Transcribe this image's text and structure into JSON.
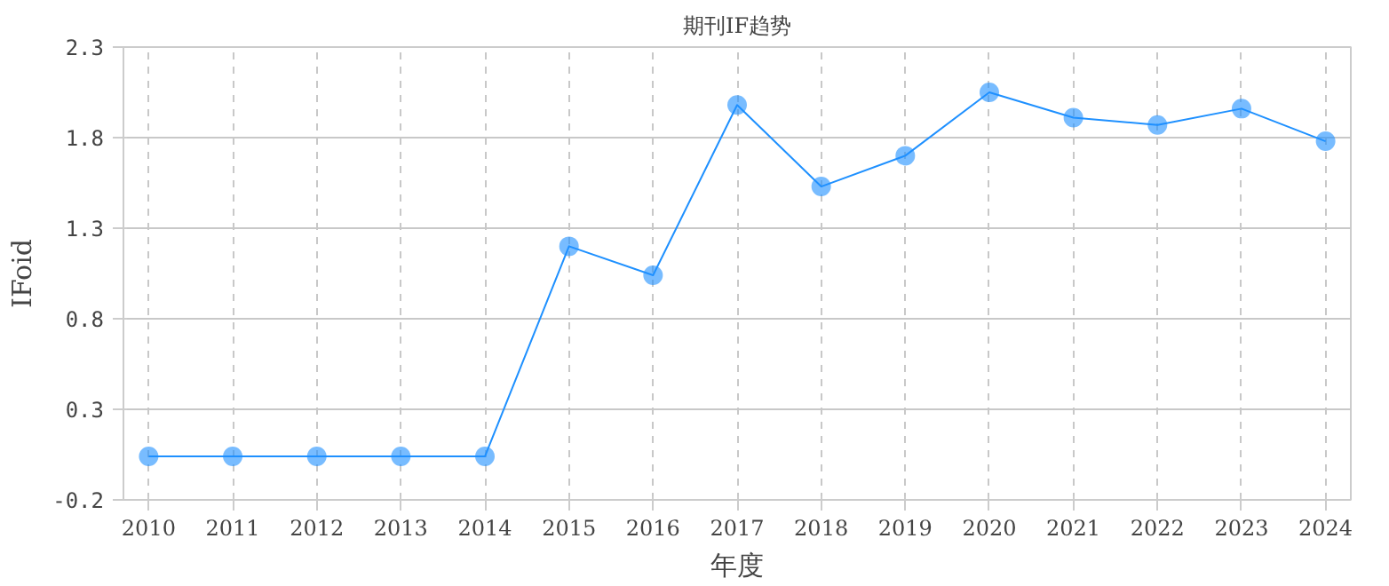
{
  "chart_data": {
    "type": "line",
    "title": "期刊IF趋势",
    "xlabel": "年度",
    "ylabel": "IFoid",
    "categories": [
      "2010",
      "2011",
      "2012",
      "2013",
      "2014",
      "2015",
      "2016",
      "2017",
      "2018",
      "2019",
      "2020",
      "2021",
      "2022",
      "2023",
      "2024"
    ],
    "series": [
      {
        "color": "#1e90ff",
        "values": [
          0.04,
          0.04,
          0.04,
          0.04,
          0.04,
          1.2,
          1.04,
          1.98,
          1.53,
          1.7,
          2.05,
          1.91,
          1.87,
          1.96,
          1.78
        ]
      }
    ],
    "ylim": [
      -0.2,
      2.3
    ],
    "yticks": [
      {
        "value": -0.2,
        "label": "-0.2"
      },
      {
        "value": 0.3,
        "label": "0.3"
      },
      {
        "value": 0.8,
        "label": "0.8"
      },
      {
        "value": 1.3,
        "label": "1.3"
      },
      {
        "value": 1.8,
        "label": "1.8"
      },
      {
        "value": 2.3,
        "label": "2.3"
      }
    ],
    "grid": true,
    "marker": "circle",
    "line_style": "solid"
  }
}
